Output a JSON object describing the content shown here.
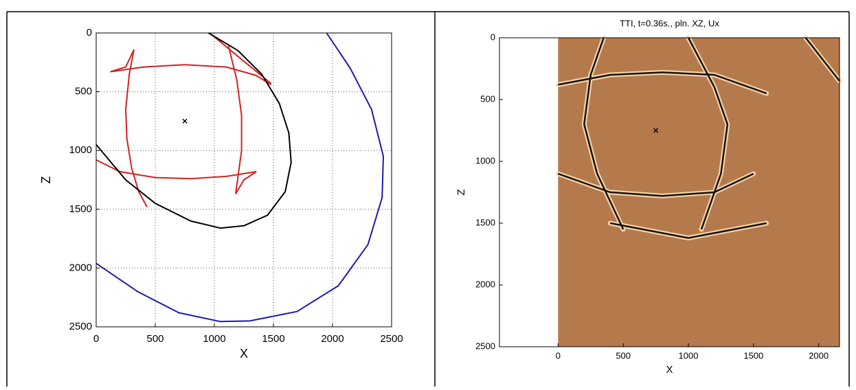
{
  "chart_data": [
    {
      "type": "line",
      "xlabel": "X",
      "ylabel": "Z",
      "xlim": [
        0,
        2500
      ],
      "ylim": [
        0,
        2500
      ],
      "y_reversed": true,
      "xticks": [
        0,
        500,
        1000,
        1500,
        2000,
        2500
      ],
      "yticks": [
        0,
        500,
        1000,
        1500,
        2000,
        2500
      ],
      "grid": true,
      "series": [
        {
          "color": "#d42020",
          "x": [
            120,
            400,
            750,
            1100,
            1350,
            1480,
            null,
            320,
            280,
            250,
            260,
            300,
            360,
            430,
            null,
            320,
            250,
            120,
            null,
            1120,
            1190,
            1230,
            1230,
            1180,
            null,
            960,
            1200,
            1480,
            null,
            0,
            200,
            500,
            800,
            1100,
            1355,
            null,
            1355,
            1250,
            1180
          ],
          "values": [
            330,
            290,
            270,
            290,
            360,
            440,
            null,
            140,
            350,
            650,
            900,
            1150,
            1350,
            1480,
            null,
            140,
            290,
            330,
            null,
            110,
            400,
            700,
            1000,
            1370,
            null,
            0,
            200,
            430,
            null,
            1080,
            1180,
            1230,
            1240,
            1220,
            1180,
            null,
            1180,
            1250,
            1370
          ]
        },
        {
          "color": "#000000",
          "x": [
            950,
            1200,
            1400,
            1550,
            1630,
            1650,
            1600,
            1450,
            1250,
            1050,
            800,
            500,
            250,
            0
          ],
          "values": [
            0,
            150,
            350,
            600,
            850,
            1100,
            1350,
            1550,
            1640,
            1660,
            1600,
            1450,
            1250,
            950
          ]
        },
        {
          "color": "#1a1ab0",
          "x": [
            1950,
            2150,
            2330,
            2430,
            2420,
            2300,
            2050,
            1700,
            1300,
            1050,
            700,
            350,
            0
          ],
          "values": [
            0,
            300,
            650,
            1050,
            1400,
            1800,
            2150,
            2370,
            2450,
            2455,
            2380,
            2200,
            1960
          ]
        }
      ],
      "marker": {
        "x": 750,
        "y": 750
      }
    },
    {
      "type": "image",
      "title": "TTI, t=0.36s., pln. XZ, Ux",
      "xlabel": "X",
      "ylabel": "Z",
      "xlim": [
        -450,
        2160
      ],
      "ylim": [
        0,
        2500
      ],
      "y_reversed": true,
      "xticks": [
        0,
        500,
        1000,
        1500,
        2000
      ],
      "yticks": [
        0,
        500,
        1000,
        1500,
        2000,
        2500
      ],
      "grid": false,
      "image": {
        "x": [
          0,
          2160
        ],
        "color": "#b57a4c"
      },
      "series": [
        {
          "color": "#1a0f08",
          "x": [
            0,
            400,
            800,
            1200,
            1600,
            null,
            0,
            400,
            800,
            1200,
            1500,
            null,
            350,
            250,
            200,
            300,
            500,
            null,
            1000,
            1200,
            1300,
            1250,
            1100,
            null,
            1900,
            2160,
            null,
            400,
            1000,
            1600
          ],
          "values": [
            380,
            300,
            280,
            300,
            450,
            null,
            1100,
            1250,
            1280,
            1250,
            1100,
            null,
            0,
            300,
            700,
            1100,
            1550,
            null,
            0,
            400,
            700,
            1100,
            1550,
            null,
            0,
            350,
            null,
            1500,
            1620,
            1500
          ]
        }
      ],
      "marker": {
        "x": 750,
        "y": 750
      }
    }
  ]
}
